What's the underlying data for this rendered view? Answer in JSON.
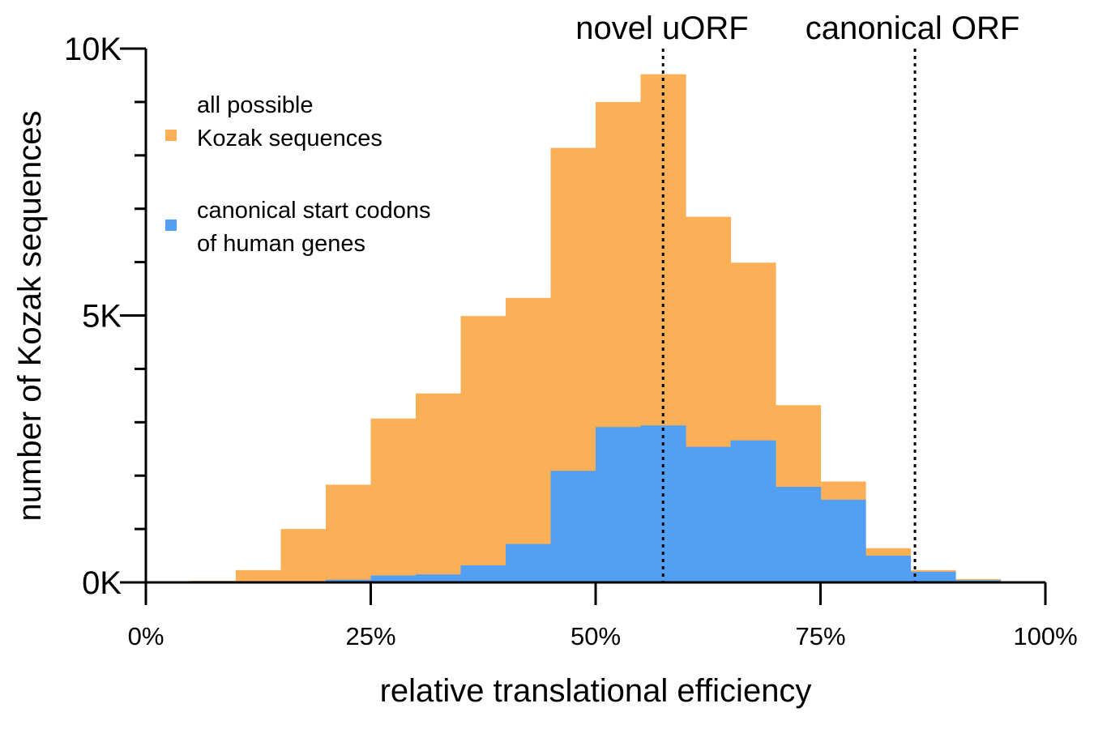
{
  "chart_data": {
    "type": "histogram",
    "title": "",
    "xlabel": "relative translational efficiency",
    "ylabel": "number of Kozak sequences",
    "xlim": [
      0,
      100
    ],
    "ylim": [
      0,
      10000
    ],
    "x_ticks": [
      0,
      25,
      50,
      75,
      100
    ],
    "x_tick_labels": [
      "0%",
      "25%",
      "50%",
      "75%",
      "100%"
    ],
    "y_ticks": [
      0,
      5000,
      10000
    ],
    "y_tick_labels": [
      "0K",
      "5K",
      "10K"
    ],
    "y_minor_ticks": [
      1000,
      2000,
      3000,
      4000,
      6000,
      7000,
      8000,
      9000
    ],
    "grid": false,
    "legend_position": "top-left",
    "bin_edges": [
      0,
      5,
      10,
      15,
      20,
      25,
      30,
      35,
      40,
      45,
      50,
      55,
      60,
      65,
      70,
      75,
      80,
      85,
      90,
      95,
      100
    ],
    "series": [
      {
        "name": "all possible Kozak sequences",
        "legend_lines": [
          "all possible",
          "Kozak sequences"
        ],
        "color": "#fbb058",
        "values": [
          0,
          30,
          230,
          1000,
          1830,
          3070,
          3540,
          4990,
          5330,
          8140,
          9000,
          9520,
          6850,
          5990,
          3320,
          1890,
          640,
          230,
          60,
          20
        ]
      },
      {
        "name": "canonical start codons of human genes",
        "legend_lines": [
          "canonical start codons",
          "of human genes"
        ],
        "color": "#529ff3",
        "values": [
          0,
          0,
          0,
          20,
          50,
          130,
          150,
          320,
          720,
          2090,
          2910,
          2940,
          2540,
          2660,
          1790,
          1550,
          500,
          200,
          40,
          10
        ]
      }
    ],
    "annotations": [
      {
        "label": "novel uORF",
        "x": 57.5,
        "style": "dotted-vertical-line"
      },
      {
        "label": "canonical ORF",
        "x": 85.5,
        "style": "dotted-vertical-line"
      }
    ]
  }
}
